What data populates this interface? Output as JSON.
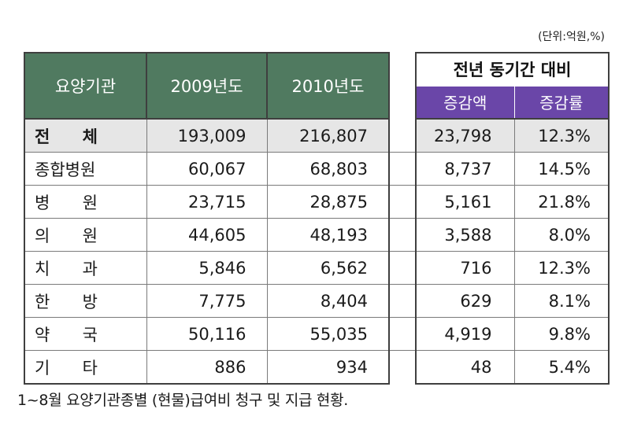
{
  "unit_note": "(단위:억원,%)",
  "header": {
    "category": "요양기관",
    "year1": "2009년도",
    "year2": "2010년도",
    "group": "전년 동기간 대비",
    "diff": "증감액",
    "rate": "증감률"
  },
  "rows": [
    {
      "name": "전 체",
      "c1": "전",
      "c2": "체",
      "y2009": "193,009",
      "y2010": "216,807",
      "diff": "23,798",
      "rate": "12.3%"
    },
    {
      "name": "종합병원",
      "y2009": "60,067",
      "y2010": "68,803",
      "diff": "8,737",
      "rate": "14.5%"
    },
    {
      "name": "병 원",
      "c1": "병",
      "c2": "원",
      "y2009": "23,715",
      "y2010": "28,875",
      "diff": "5,161",
      "rate": "21.8%"
    },
    {
      "name": "의 원",
      "c1": "의",
      "c2": "원",
      "y2009": "44,605",
      "y2010": "48,193",
      "diff": "3,588",
      "rate": "8.0%"
    },
    {
      "name": "치 과",
      "c1": "치",
      "c2": "과",
      "y2009": "5,846",
      "y2010": "6,562",
      "diff": "716",
      "rate": "12.3%"
    },
    {
      "name": "한 방",
      "c1": "한",
      "c2": "방",
      "y2009": "7,775",
      "y2010": "8,404",
      "diff": "629",
      "rate": "8.1%"
    },
    {
      "name": "약 국",
      "c1": "약",
      "c2": "국",
      "y2009": "50,116",
      "y2010": "55,035",
      "diff": "4,919",
      "rate": "9.8%"
    },
    {
      "name": "기 타",
      "c1": "기",
      "c2": "타",
      "y2009": "886",
      "y2010": "934",
      "diff": "48",
      "rate": "5.4%"
    }
  ],
  "caption": "1~8월 요양기관종별 (현물)급여비 청구 및 지급 현황."
}
